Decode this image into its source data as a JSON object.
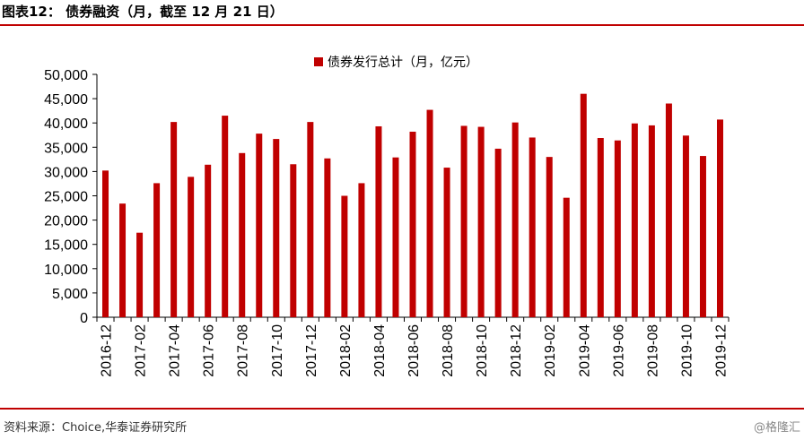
{
  "header": {
    "title": "图表12： 债券融资（月，截至 12 月 21 日）"
  },
  "footer": {
    "source": "资料来源：Choice,华泰证券研究所",
    "watermark": "@格隆汇"
  },
  "colors": {
    "bar": "#c00000",
    "rule": "#c00000",
    "axis": "#000000"
  },
  "chart_data": {
    "type": "bar",
    "title": "",
    "xlabel": "",
    "ylabel": "",
    "ylim": [
      0,
      50000
    ],
    "yticks": [
      "0",
      "5,000",
      "10,000",
      "15,000",
      "20,000",
      "25,000",
      "30,000",
      "35,000",
      "40,000",
      "45,000",
      "50,000"
    ],
    "legend": {
      "position": "top-center"
    },
    "grid": false,
    "categories": [
      "2016-12",
      "2017-01",
      "2017-02",
      "2017-03",
      "2017-04",
      "2017-05",
      "2017-06",
      "2017-07",
      "2017-08",
      "2017-09",
      "2017-10",
      "2017-11",
      "2017-12",
      "2018-01",
      "2018-02",
      "2018-03",
      "2018-04",
      "2018-05",
      "2018-06",
      "2018-07",
      "2018-08",
      "2018-09",
      "2018-10",
      "2018-11",
      "2018-12",
      "2019-01",
      "2019-02",
      "2019-03",
      "2019-04",
      "2019-05",
      "2019-06",
      "2019-07",
      "2019-08",
      "2019-09",
      "2019-10",
      "2019-11",
      "2019-12"
    ],
    "tick_labels": [
      "2016-12",
      "2017-02",
      "2017-04",
      "2017-06",
      "2017-08",
      "2017-10",
      "2017-12",
      "2018-02",
      "2018-04",
      "2018-06",
      "2018-08",
      "2018-10",
      "2018-12",
      "2019-02",
      "2019-04",
      "2019-06",
      "2019-08",
      "2019-10",
      "2019-12"
    ],
    "series": [
      {
        "name": "债券发行总计（月，亿元）",
        "values": [
          30200,
          23400,
          17400,
          27600,
          40200,
          28900,
          31400,
          41500,
          33800,
          37800,
          36700,
          31500,
          40200,
          32700,
          25000,
          27600,
          39300,
          32900,
          38200,
          42700,
          30800,
          39400,
          39200,
          34700,
          40100,
          37000,
          33000,
          24600,
          46000,
          36900,
          36400,
          39900,
          39500,
          44000,
          37400,
          33200,
          40700
        ]
      }
    ]
  }
}
